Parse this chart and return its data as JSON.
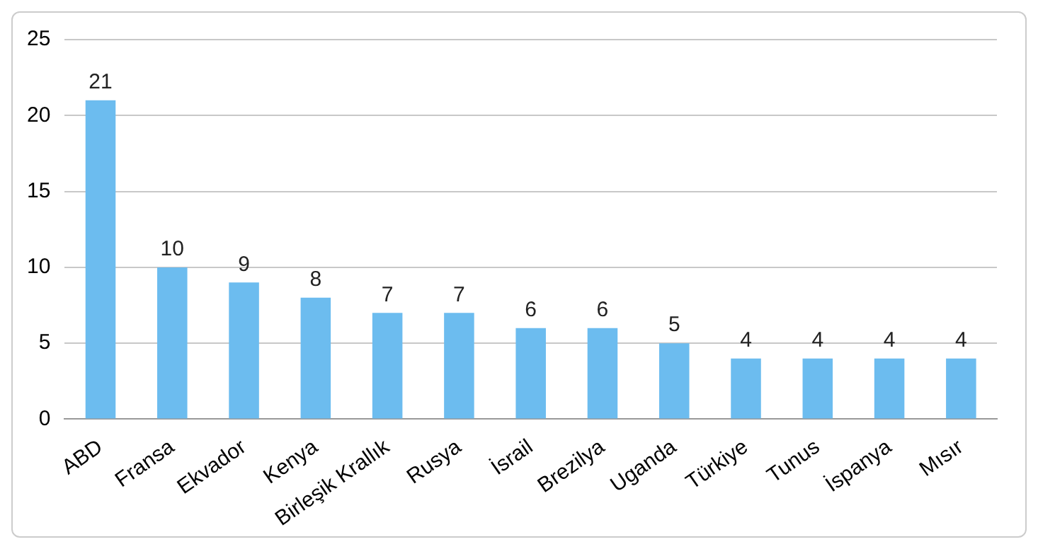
{
  "chart_data": {
    "type": "bar",
    "categories": [
      "ABD",
      "Fransa",
      "Ekvador",
      "Kenya",
      "Birleşik Krallık",
      "Rusya",
      "İsrail",
      "Brezilya",
      "Uganda",
      "Türkiye",
      "Tunus",
      "İspanya",
      "Mısır"
    ],
    "values": [
      21,
      10,
      9,
      8,
      7,
      7,
      6,
      6,
      5,
      4,
      4,
      4,
      4
    ],
    "color": "#6cbcef",
    "ylim": [
      0,
      25
    ],
    "yticks": [
      0,
      5,
      10,
      15,
      20,
      25
    ],
    "grid": "y",
    "data_labels": true
  }
}
